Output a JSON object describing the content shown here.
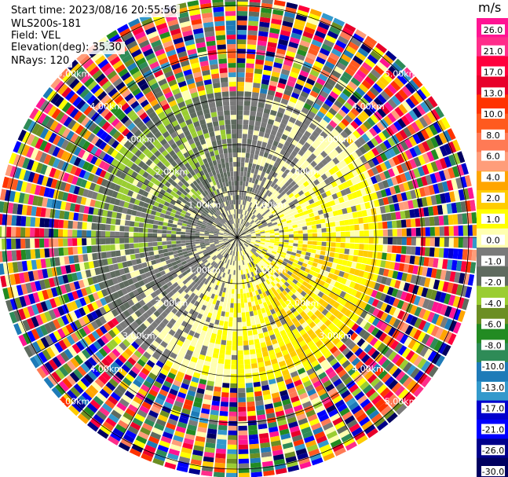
{
  "header": {
    "start_time": "Start time: 2023/08/16 20:55:56",
    "instrument": "WLS200s-181",
    "field": "Field: VEL",
    "elevation": "Elevation(deg): 35.30",
    "nrays": "NRays: 120"
  },
  "colorbar": {
    "unit": "m/s",
    "ticks": [
      "26.0",
      "21.0",
      "17.0",
      "13.0",
      "10.0",
      "8.0",
      "6.0",
      "4.0",
      "2.0",
      "1.0",
      "0.0",
      "-1.0",
      "-2.0",
      "-4.0",
      "-6.0",
      "-8.0",
      "-10.0",
      "-13.0",
      "-17.0",
      "-21.0",
      "-26.0",
      "-30.0"
    ],
    "colors": [
      "#ff1493",
      "#ff2d8a",
      "#ff003c",
      "#e8002a",
      "#ff3300",
      "#ff5a1f",
      "#ff7a55",
      "#ff9d7a",
      "#ffa500",
      "#ffcc00",
      "#ffff00",
      "#ffffb0",
      "#7a7a7a",
      "#5f6b5f",
      "#9acd32",
      "#6b8e23",
      "#228b22",
      "#2e8b57",
      "#1e7bb8",
      "#3399cc",
      "#0000cd",
      "#0000ff",
      "#00008b",
      "#000060"
    ]
  },
  "chart_data": {
    "type": "ppi",
    "field": "VEL",
    "units": "m/s",
    "n_rays": 120,
    "elevation_deg": 35.3,
    "range_rings": [
      {
        "label": "1.00km",
        "km": 1
      },
      {
        "label": "2.00km",
        "km": 2
      },
      {
        "label": "3.00km",
        "km": 3
      },
      {
        "label": "4.00km",
        "km": 4
      },
      {
        "label": "5.00km",
        "km": 5
      }
    ],
    "vmin": -30.0,
    "vmax": 30.0,
    "near_field_velocity_range": [
      -8.0,
      8.0
    ],
    "far_field": "noise"
  }
}
